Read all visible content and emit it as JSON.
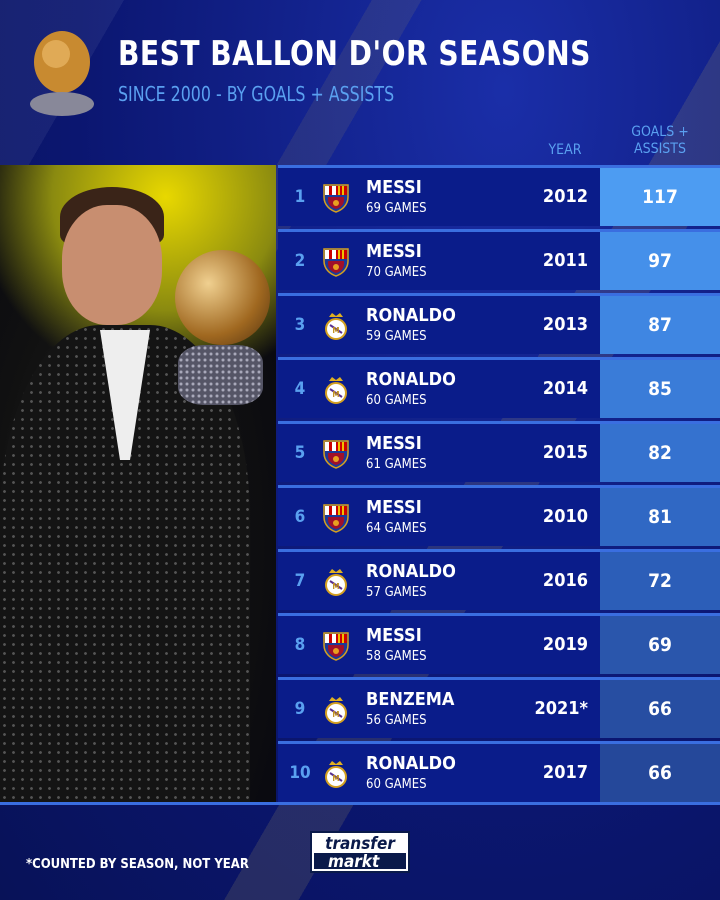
{
  "header": {
    "title": "BEST BALLON D'OR SEASONS",
    "subtitle": "SINCE 2000 - BY GOALS + ASSISTS"
  },
  "columns": {
    "year": "YEAR",
    "value_line1": "GOALS +",
    "value_line2": "ASSISTS"
  },
  "rows": [
    {
      "rank": "1",
      "club": "barcelona",
      "name": "MESSI",
      "games": "69 GAMES",
      "year": "2012",
      "value": "117"
    },
    {
      "rank": "2",
      "club": "barcelona",
      "name": "MESSI",
      "games": "70 GAMES",
      "year": "2011",
      "value": "97"
    },
    {
      "rank": "3",
      "club": "real-madrid",
      "name": "RONALDO",
      "games": "59 GAMES",
      "year": "2013",
      "value": "87"
    },
    {
      "rank": "4",
      "club": "real-madrid",
      "name": "RONALDO",
      "games": "60 GAMES",
      "year": "2014",
      "value": "85"
    },
    {
      "rank": "5",
      "club": "barcelona",
      "name": "MESSI",
      "games": "61 GAMES",
      "year": "2015",
      "value": "82"
    },
    {
      "rank": "6",
      "club": "barcelona",
      "name": "MESSI",
      "games": "64 GAMES",
      "year": "2010",
      "value": "81"
    },
    {
      "rank": "7",
      "club": "real-madrid",
      "name": "RONALDO",
      "games": "57 GAMES",
      "year": "2016",
      "value": "72"
    },
    {
      "rank": "8",
      "club": "barcelona",
      "name": "MESSI",
      "games": "58 GAMES",
      "year": "2019",
      "value": "69"
    },
    {
      "rank": "9",
      "club": "real-madrid",
      "name": "BENZEMA",
      "games": "56 GAMES",
      "year": "2021*",
      "value": "66"
    },
    {
      "rank": "10",
      "club": "real-madrid",
      "name": "RONALDO",
      "games": "60 GAMES",
      "year": "2017",
      "value": "66"
    }
  ],
  "value_colors": [
    "#4d9cf2",
    "#4590ea",
    "#3f86e2",
    "#3a7cd8",
    "#3572cf",
    "#3068c4",
    "#2c5eb8",
    "#2a56ac",
    "#274ea2",
    "#25489a"
  ],
  "footnote": "*COUNTED BY SEASON, NOT YEAR",
  "logo": {
    "line1": "transfer",
    "line2": "markt"
  }
}
